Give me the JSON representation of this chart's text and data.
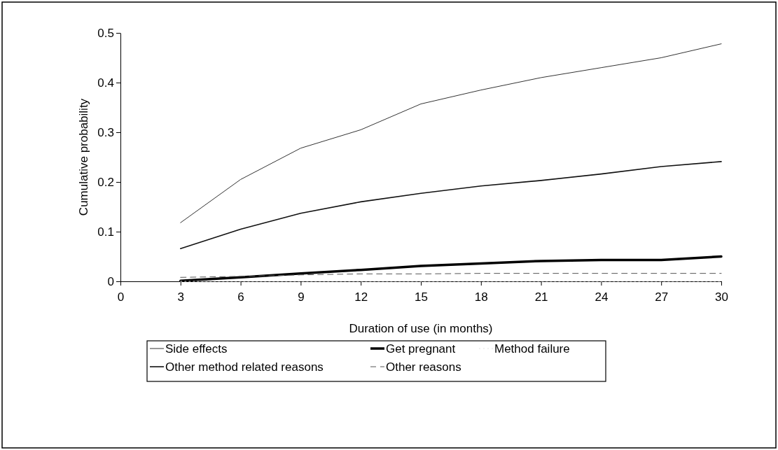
{
  "chart_data": {
    "type": "line",
    "xlabel": "Duration of use (in months)",
    "ylabel": "Cumulative probability",
    "x": [
      3,
      6,
      9,
      12,
      15,
      18,
      21,
      24,
      27,
      30
    ],
    "xlim": [
      0,
      30
    ],
    "xticks": [
      0,
      3,
      6,
      9,
      12,
      15,
      18,
      21,
      24,
      27,
      30
    ],
    "ylim": [
      0,
      0.5
    ],
    "yticks": [
      0,
      0.1,
      0.2,
      0.3,
      0.4,
      0.5
    ],
    "grid": false,
    "legend": "bottom",
    "marker": "none",
    "series": [
      {
        "name": "Side effects",
        "color": "#333333",
        "line_style": "solid",
        "values": [
          0.118,
          0.205,
          0.268,
          0.305,
          0.357,
          0.385,
          0.41,
          0.43,
          0.45,
          0.478
        ]
      },
      {
        "name": "Get pregnant",
        "color": "#000000",
        "line_style": "solid",
        "values": [
          0.001,
          0.008,
          0.016,
          0.023,
          0.031,
          0.036,
          0.041,
          0.043,
          0.043,
          0.05
        ]
      },
      {
        "name": "Method failure",
        "color": "#e0e0e0",
        "line_style": "dotted",
        "values": [
          0,
          0,
          0,
          0,
          0,
          0,
          0,
          0,
          0,
          0
        ]
      },
      {
        "name": "Other method related reasons",
        "color": "#111111",
        "line_style": "solid",
        "values": [
          0.066,
          0.105,
          0.137,
          0.16,
          0.177,
          0.192,
          0.203,
          0.216,
          0.231,
          0.241
        ]
      },
      {
        "name": "Other reasons",
        "color": "#555555",
        "line_style": "dashed",
        "values": [
          0.008,
          0.01,
          0.013,
          0.015,
          0.015,
          0.016,
          0.016,
          0.016,
          0.016,
          0.016
        ]
      }
    ]
  }
}
